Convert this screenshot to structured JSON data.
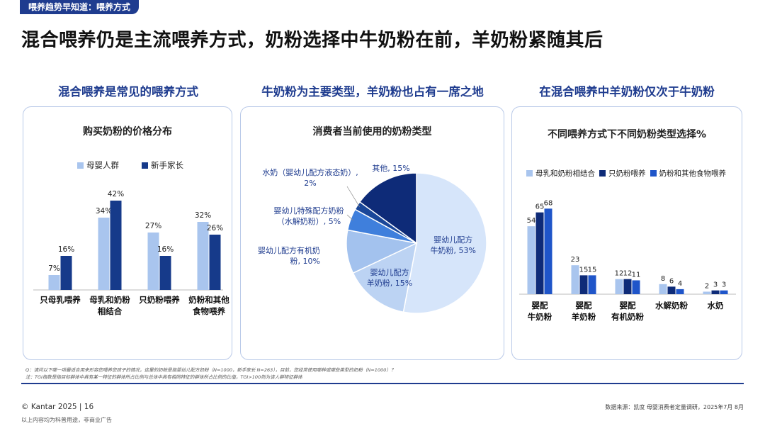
{
  "header": {
    "tag": "喂养趋势早知道：喂养方式",
    "title": "混合喂养仍是主流喂养方式，奶粉选择中牛奶粉在前，羊奶粉紧随其后"
  },
  "sections": {
    "left_title": "混合喂养是常见的喂养方式",
    "middle_title": "牛奶粉为主要类型，羊奶粉也占有一席之地",
    "right_title": "在混合喂养中羊奶粉仅次于牛奶粉"
  },
  "chart_data": [
    {
      "type": "bar",
      "title": "购买奶粉的价格分布",
      "categories": [
        [
          "只母乳喂养"
        ],
        [
          "母乳和奶粉",
          "相结合"
        ],
        [
          "只奶粉喂养"
        ],
        [
          "奶粉和其他",
          "食物喂养"
        ]
      ],
      "series": [
        {
          "name": "母婴人群",
          "color": "#a9c5ee",
          "values": [
            7,
            34,
            27,
            32
          ],
          "labels": [
            "7%",
            "34%",
            "27%",
            "32%"
          ]
        },
        {
          "name": "新手家长",
          "color": "#163a8a",
          "values": [
            16,
            42,
            16,
            26
          ],
          "labels": [
            "16%",
            "42%",
            "16%",
            "26%"
          ]
        }
      ],
      "ylim": [
        0,
        50
      ]
    },
    {
      "type": "pie",
      "title": "消费者当前使用的奶粉类型",
      "slices": [
        {
          "label": [
            "婴幼儿配方",
            "牛奶粉, 53%"
          ],
          "value": 53,
          "color": "#d6e5fa"
        },
        {
          "label": [
            "婴幼儿配方",
            "羊奶粉, 15%"
          ],
          "value": 15,
          "color": "#bcd3f3"
        },
        {
          "label": [
            "婴幼儿配方有机奶",
            "粉, 10%"
          ],
          "value": 10,
          "color": "#a3c2ee"
        },
        {
          "label": [
            "婴幼儿特殊配方奶粉",
            "（水解奶粉）, 5%"
          ],
          "value": 5,
          "color": "#3f7fdc"
        },
        {
          "label": [
            "水奶（婴幼儿配方液态奶）,",
            "2%"
          ],
          "value": 2,
          "color": "#1a4799"
        },
        {
          "label": [
            "其他, 15%"
          ],
          "value": 15,
          "color": "#0e2b78"
        }
      ]
    },
    {
      "type": "bar",
      "title": "不同喂养方式下不同奶粉类型选择%",
      "categories": [
        [
          "婴配",
          "牛奶粉"
        ],
        [
          "婴配",
          "羊奶粉"
        ],
        [
          "婴配",
          "有机奶粉"
        ],
        [
          "水解奶粉"
        ],
        [
          "水奶"
        ]
      ],
      "series": [
        {
          "name": "母乳和奶粉相结合",
          "color": "#a9c5ee",
          "values": [
            54,
            23,
            12,
            8,
            2
          ]
        },
        {
          "name": "只奶粉喂养",
          "color": "#0e2b78",
          "values": [
            65,
            15,
            12,
            6,
            3
          ]
        },
        {
          "name": "奶粉和其他食物喂养",
          "color": "#1f55c9",
          "values": [
            68,
            15,
            11,
            4,
            3
          ]
        }
      ],
      "ylim": [
        0,
        80
      ]
    }
  ],
  "footer": {
    "note_q": "Q：请问以下哪一项最适合用来形容您喂养您孩子的情况，这里的奶粉是指婴幼儿配方奶粉（N=1000，新手家长 N=263），目前，您经常使用哪种或哪些类型的奶粉（N=1000）？",
    "note_z": "注：TGI指数是指目标群体中具有某一特征的群体所占比例与总体中具有相同特征的群体所占比例的比值，TGI>100则为该人群特征群体",
    "copyright": "© Kantar 2025 | 16",
    "disclaimer": "以上内容均为科普用途，非商业广告",
    "source": "数据来源：凯度 母婴消费者定量调研，2025年7月 8月"
  }
}
